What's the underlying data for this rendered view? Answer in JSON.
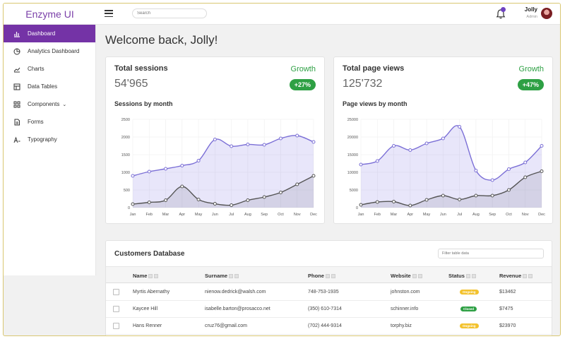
{
  "brand": "Enzyme UI",
  "search": {
    "placeholder": "Search"
  },
  "user": {
    "name": "Jolly",
    "role": "Admin"
  },
  "sidebar": {
    "items": [
      {
        "label": "Dashboard",
        "icon": "bar-chart-icon"
      },
      {
        "label": "Analytics Dashboard",
        "icon": "pie-chart-icon"
      },
      {
        "label": "Charts",
        "icon": "line-chart-icon"
      },
      {
        "label": "Data Tables",
        "icon": "table-icon"
      },
      {
        "label": "Components",
        "icon": "grid-icon"
      },
      {
        "label": "Forms",
        "icon": "document-icon"
      },
      {
        "label": "Typography",
        "icon": "typography-icon"
      }
    ]
  },
  "welcome": "Welcome back, Jolly!",
  "cards": [
    {
      "title": "Total sessions",
      "value": "54'965",
      "growth_label": "Growth",
      "growth_pct": "+27%",
      "chart_title": "Sessions by month"
    },
    {
      "title": "Total page views",
      "value": "125'732",
      "growth_label": "Growth",
      "growth_pct": "+47%",
      "chart_title": "Page views by month"
    }
  ],
  "colors": {
    "accent": "#7433a6",
    "growth": "#2ea044",
    "series_primary": "#7b6fd6",
    "series_secondary": "#555555",
    "pending": "#f3c22d",
    "closed": "#2ea044"
  },
  "chart_data": [
    {
      "type": "area",
      "title": "Sessions by month",
      "categories": [
        "Jan",
        "Feb",
        "Mar",
        "Apr",
        "May",
        "Jun",
        "Jul",
        "Aug",
        "Sep",
        "Oct",
        "Nov",
        "Dec"
      ],
      "ylim": [
        0,
        2500
      ],
      "yticks": [
        0,
        500,
        1000,
        1500,
        2000,
        2500
      ],
      "grid": true,
      "series": [
        {
          "values": [
            900,
            1020,
            1100,
            1190,
            1330,
            1930,
            1740,
            1790,
            1780,
            1960,
            2040,
            1860
          ]
        },
        {
          "values": [
            100,
            150,
            210,
            600,
            230,
            110,
            70,
            210,
            300,
            430,
            660,
            900
          ]
        }
      ]
    },
    {
      "type": "area",
      "title": "Page views by month",
      "categories": [
        "Jan",
        "Feb",
        "Mar",
        "Apr",
        "May",
        "Jun",
        "Jul",
        "Aug",
        "Sep",
        "Oct",
        "Nov",
        "Dec"
      ],
      "ylim": [
        0,
        25000
      ],
      "yticks": [
        0,
        5000,
        10000,
        15000,
        20000,
        25000
      ],
      "grid": true,
      "series": [
        {
          "values": [
            12200,
            13200,
            17500,
            16300,
            18200,
            19600,
            22900,
            10500,
            7800,
            10900,
            12800,
            17500
          ]
        },
        {
          "values": [
            800,
            1600,
            1700,
            600,
            2200,
            3400,
            2300,
            3400,
            3400,
            5000,
            8600,
            10300
          ]
        }
      ]
    }
  ],
  "table": {
    "title": "Customers Database",
    "filter_placeholder": "Filter table data",
    "columns": [
      "Name",
      "Surname",
      "Phone",
      "Website",
      "Status",
      "Revenue"
    ],
    "rows": [
      {
        "name": "Myrtis Abernathy",
        "surname": "nienow.dedrick@walsh.com",
        "phone": "748-753-1935",
        "website": "johnston.com",
        "status": "Ongoing",
        "status_color": "#f3c22d",
        "revenue": "$13462"
      },
      {
        "name": "Kaycee Hill",
        "surname": "isabelle.barton@prosacco.net",
        "phone": "(350) 610-7314",
        "website": "schinner.info",
        "status": "Closed",
        "status_color": "#2ea044",
        "revenue": "$7475"
      },
      {
        "name": "Hans Renner",
        "surname": "cruz76@gmail.com",
        "phone": "(702) 444-9314",
        "website": "torphy.biz",
        "status": "Ongoing",
        "status_color": "#f3c22d",
        "revenue": "$23970"
      }
    ]
  }
}
